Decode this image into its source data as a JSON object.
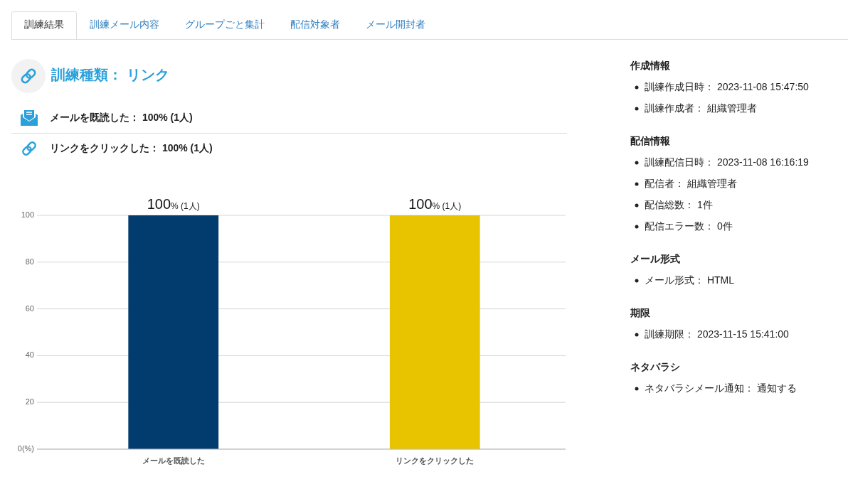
{
  "chart_data": [
    {
      "type": "other",
      "annotations": [
        "訓練結果",
        "訓練メール内容",
        "グループごと集計",
        "配信対象者",
        "メール開封者"
      ]
    },
    {
      "type": "bar",
      "title": "訓練種類： リンク",
      "annotations": [
        "メールを既読した： 100% (1人)",
        "リンクをクリックした： 100% (1人)"
      ],
      "categories": [
        "メールを既読した",
        "リンクをクリックした"
      ],
      "values": [
        100,
        100
      ],
      "colors": [
        "#023b6e",
        "#e8c400"
      ],
      "value_labels": [
        "100% (1人)",
        "100% (1人)"
      ],
      "ylim": [
        0,
        100
      ],
      "yticks": [
        {
          "value": 0,
          "label": "0(%)"
        },
        20,
        40,
        60,
        80,
        100
      ],
      "grid": "y"
    },
    {
      "type": "other",
      "title": "作成情報",
      "annotations": [
        "訓練作成日時： 2023-11-08 15:47:50",
        "訓練作成者： 組織管理者"
      ]
    },
    {
      "type": "other",
      "title": "配信情報",
      "annotations": [
        "訓練配信日時： 2023-11-08 16:16:19",
        "配信者： 組織管理者",
        "配信総数： 1件",
        "配信エラー数： 0件"
      ]
    },
    {
      "type": "other",
      "title": "メール形式",
      "annotations": [
        "メール形式： HTML"
      ]
    },
    {
      "type": "other",
      "title": "期限",
      "annotations": [
        "訓練期限： 2023-11-15 15:41:00"
      ]
    },
    {
      "type": "other",
      "title": "ネタバラシ",
      "annotations": [
        "ネタバラシメール通知： 通知する"
      ]
    }
  ]
}
